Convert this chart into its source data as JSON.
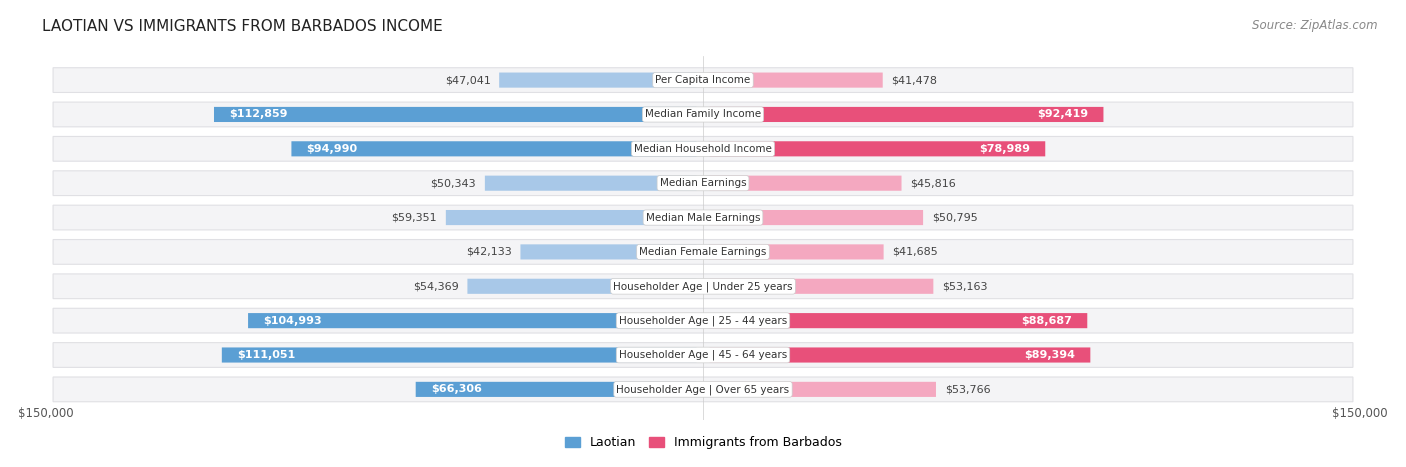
{
  "title": "LAOTIAN VS IMMIGRANTS FROM BARBADOS INCOME",
  "source": "Source: ZipAtlas.com",
  "categories": [
    "Per Capita Income",
    "Median Family Income",
    "Median Household Income",
    "Median Earnings",
    "Median Male Earnings",
    "Median Female Earnings",
    "Householder Age | Under 25 years",
    "Householder Age | 25 - 44 years",
    "Householder Age | 45 - 64 years",
    "Householder Age | Over 65 years"
  ],
  "laotian_values": [
    47041,
    112859,
    94990,
    50343,
    59351,
    42133,
    54369,
    104993,
    111051,
    66306
  ],
  "barbados_values": [
    41478,
    92419,
    78989,
    45816,
    50795,
    41685,
    53163,
    88687,
    89394,
    53766
  ],
  "laotian_color_dark": "#5b9fd4",
  "laotian_color_light": "#a8c8e8",
  "barbados_color_dark": "#e8507a",
  "barbados_color_light": "#f4a8c0",
  "laotian_label": "Laotian",
  "barbados_label": "Immigrants from Barbados",
  "max_value": 150000,
  "x_label_left": "$150,000",
  "x_label_right": "$150,000",
  "background_color": "#ffffff",
  "row_bg_color": "#f0f0f0",
  "title_fontsize": 11,
  "source_fontsize": 8.5,
  "bar_label_fontsize": 8,
  "category_fontsize": 7.5,
  "dark_threshold": 60000
}
